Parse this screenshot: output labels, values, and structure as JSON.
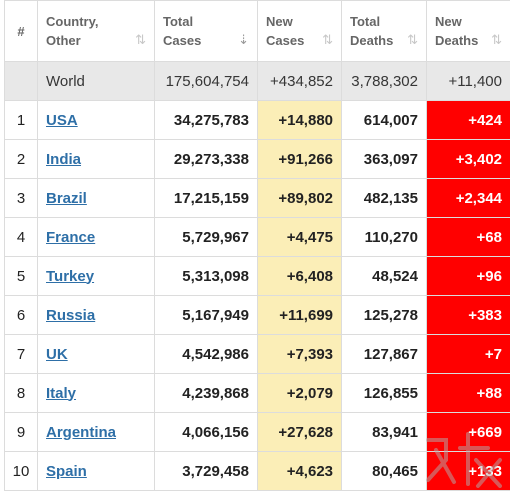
{
  "headers": {
    "index": "#",
    "country": [
      "Country,",
      "Other"
    ],
    "total_cases": [
      "Total",
      "Cases"
    ],
    "new_cases": [
      "New",
      "Cases"
    ],
    "total_deaths": [
      "Total",
      "Deaths"
    ],
    "new_deaths": [
      "New",
      "Deaths"
    ],
    "sort_icon": "⇅",
    "sort_active_icon": "⇣"
  },
  "world": {
    "country": "World",
    "total_cases": "175,604,754",
    "new_cases": "+434,852",
    "total_deaths": "3,788,302",
    "new_deaths": "+11,400"
  },
  "rows": [
    {
      "rank": "1",
      "country": "USA",
      "total_cases": "34,275,783",
      "new_cases": "+14,880",
      "total_deaths": "614,007",
      "new_deaths": "+424"
    },
    {
      "rank": "2",
      "country": "India",
      "total_cases": "29,273,338",
      "new_cases": "+91,266",
      "total_deaths": "363,097",
      "new_deaths": "+3,402"
    },
    {
      "rank": "3",
      "country": "Brazil",
      "total_cases": "17,215,159",
      "new_cases": "+89,802",
      "total_deaths": "482,135",
      "new_deaths": "+2,344"
    },
    {
      "rank": "4",
      "country": "France",
      "total_cases": "5,729,967",
      "new_cases": "+4,475",
      "total_deaths": "110,270",
      "new_deaths": "+68"
    },
    {
      "rank": "5",
      "country": "Turkey",
      "total_cases": "5,313,098",
      "new_cases": "+6,408",
      "total_deaths": "48,524",
      "new_deaths": "+96"
    },
    {
      "rank": "6",
      "country": "Russia",
      "total_cases": "5,167,949",
      "new_cases": "+11,699",
      "total_deaths": "125,278",
      "new_deaths": "+383"
    },
    {
      "rank": "7",
      "country": "UK",
      "total_cases": "4,542,986",
      "new_cases": "+7,393",
      "total_deaths": "127,867",
      "new_deaths": "+7"
    },
    {
      "rank": "8",
      "country": "Italy",
      "total_cases": "4,239,868",
      "new_cases": "+2,079",
      "total_deaths": "126,855",
      "new_deaths": "+88"
    },
    {
      "rank": "9",
      "country": "Argentina",
      "total_cases": "4,066,156",
      "new_cases": "+27,628",
      "total_deaths": "83,941",
      "new_deaths": "+669"
    },
    {
      "rank": "10",
      "country": "Spain",
      "total_cases": "3,729,458",
      "new_cases": "+4,623",
      "total_deaths": "80,465",
      "new_deaths": "+133"
    }
  ],
  "colors": {
    "link": "#2e6fa7",
    "new_cases_bg": "#fbeeb7",
    "new_deaths_bg": "#ff0000",
    "world_row_bg": "#e8e8e8",
    "header_text": "#666666"
  }
}
